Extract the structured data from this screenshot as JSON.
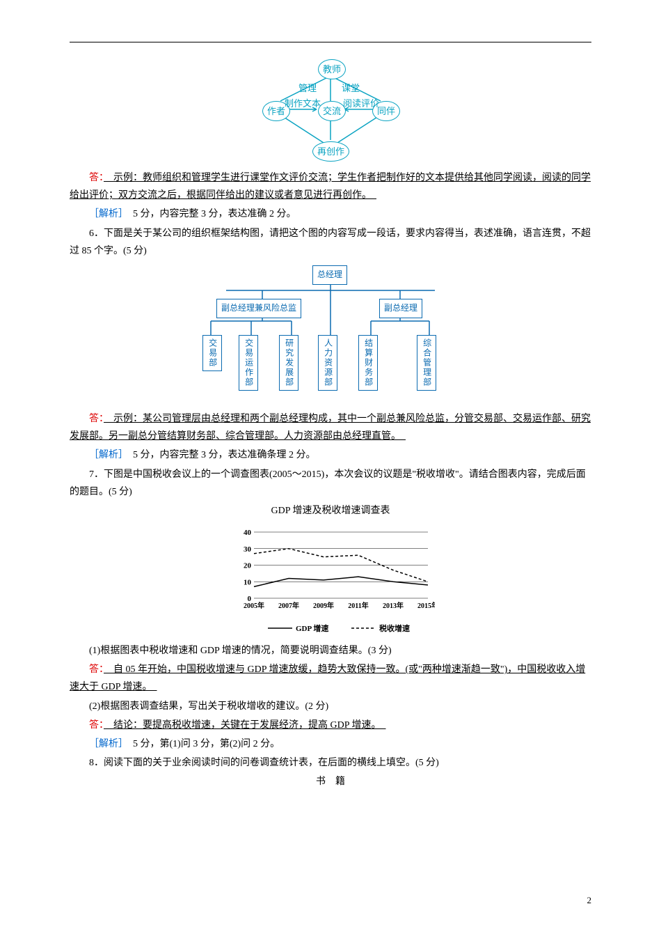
{
  "diagram1": {
    "colors": {
      "stroke": "#0aa3c2",
      "text": "#0aa3c2"
    },
    "nodes": {
      "top": "教师",
      "left": "作者",
      "center": "交流",
      "right": "同伴",
      "bottom": "再创作"
    },
    "edges": {
      "tl": "管理",
      "tr": "课堂",
      "lc": "制作文本",
      "cr": "阅读评价"
    }
  },
  "answer5": {
    "prefix": "答：",
    "text": "　示例：教师组织和管理学生进行课堂作文评价交流；学生作者把制作好的文本提供给其他同学阅读，阅读的同学给出评价；双方交流之后，根据同伴给出的建议或者意见进行再创作。　"
  },
  "analysis5": {
    "label": "［解析］",
    "text": "　5 分，内容完整 3 分，表达准确 2 分。"
  },
  "q6": "6．下面是关于某公司的组织框架结构图，请把这个图的内容写成一段话，要求内容得当，表述准确，语言连贯，不超过 85 个字。(5 分)",
  "org": {
    "colors": {
      "stroke": "#0a6ab0",
      "text": "#0a6ab0"
    },
    "top": "总经理",
    "mids": [
      "副总经理兼风险总监",
      "副总经理"
    ],
    "depts": [
      "交易部",
      "交易运作部",
      "研究发展部",
      "人力资源部",
      "结算财务部",
      "综合管理部"
    ]
  },
  "answer6": {
    "prefix": "答：",
    "text": "　示例：某公司管理层由总经理和两个副总经理构成，其中一个副总兼风险总监，分管交易部、交易运作部、研究发展部。另一副总分管结算财务部、综合管理部。人力资源部由总经理直管。　"
  },
  "analysis6": {
    "label": "［解析］",
    "text": "　5 分，内容完整 3 分，表达准确条理 2 分。"
  },
  "q7": "7．下图是中国税收会议上的一个调查图表(2005～2015)，本次会议的议题是\"税收增收\"。请结合图表内容，完成后面的题目。(5 分)",
  "chartTitle": "GDP 增速及税收增速调查表",
  "chart": {
    "type": "line",
    "xlabels": [
      "2005年",
      "2007年",
      "2009年",
      "2011年",
      "2013年",
      "2015年"
    ],
    "ylim": [
      0,
      40
    ],
    "yticks": [
      0,
      10,
      20,
      30,
      40
    ],
    "series": [
      {
        "name": "GDP 增速",
        "style": "solid",
        "color": "#000",
        "values": [
          7,
          12,
          11,
          13,
          10,
          8
        ]
      },
      {
        "name": "税收增速",
        "style": "dashed",
        "color": "#000",
        "values": [
          27,
          30,
          25,
          26,
          17,
          10
        ]
      }
    ],
    "label_fontsize": 12,
    "background": "#ffffff",
    "axis_color": "#000"
  },
  "q7_1": "(1)根据图表中税收增速和 GDP 增速的情况，简要说明调查结果。(3 分)",
  "answer7_1": {
    "prefix": "答：",
    "text": "　自 05 年开始，中国税收增速与 GDP 增速放缓，趋势大致保持一致。(或\"两种增速渐趋一致\")，中国税收收入增速大于 GDP 增速。　"
  },
  "q7_2": "(2)根据图表调查结果，写出关于税收增收的建议。(2 分)",
  "answer7_2": {
    "prefix": "答：",
    "text": "　结论：要提高税收增速，关键在于发展经济，提高 GDP 增速。　"
  },
  "analysis7": {
    "label": "［解析］",
    "text": "　5 分，第(1)问 3 分，第(2)问 2 分。"
  },
  "q8": "8．阅读下面的关于业余阅读时间的问卷调查统计表，在后面的横线上填空。(5 分)",
  "q8title": "书　籍",
  "pageNum": "2"
}
